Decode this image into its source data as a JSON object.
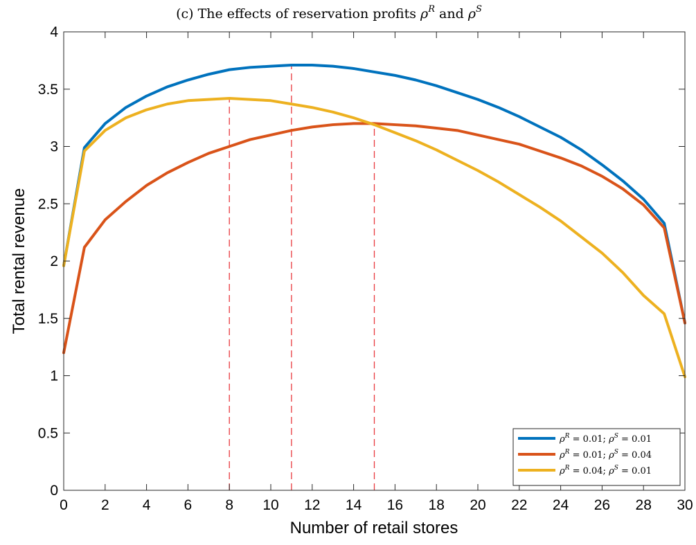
{
  "chart_data": {
    "type": "line",
    "title": "(c) The effects of reservation profits ρ^R and ρ^S",
    "title_parts": {
      "prefix": "(c) The effects of reservation profits ",
      "sym1": "ρ",
      "sup1": "R",
      "mid": " and ",
      "sym2": "ρ",
      "sup2": "S"
    },
    "xlabel": "Number of retail stores",
    "ylabel": "Total rental revenue",
    "xlim": [
      0,
      30
    ],
    "ylim": [
      0,
      4
    ],
    "xticks": [
      0,
      2,
      4,
      6,
      8,
      10,
      12,
      14,
      16,
      18,
      20,
      22,
      24,
      26,
      28,
      30
    ],
    "yticks": [
      0,
      0.5,
      1,
      1.5,
      2,
      2.5,
      3,
      3.5,
      4
    ],
    "ytick_labels": [
      "0",
      "0.5",
      "1",
      "1.5",
      "2",
      "2.5",
      "3",
      "3.5",
      "4"
    ],
    "grid": false,
    "legend_position": "bottom-right",
    "x": [
      0,
      1,
      2,
      3,
      4,
      5,
      6,
      7,
      8,
      9,
      10,
      11,
      12,
      13,
      14,
      15,
      16,
      17,
      18,
      19,
      20,
      21,
      22,
      23,
      24,
      25,
      26,
      27,
      28,
      29,
      30
    ],
    "series": [
      {
        "name": "ρ^R = 0.01; ρ^S = 0.01",
        "color": "#0072bd",
        "values": [
          1.96,
          2.99,
          3.2,
          3.34,
          3.44,
          3.52,
          3.58,
          3.63,
          3.67,
          3.69,
          3.7,
          3.71,
          3.71,
          3.7,
          3.68,
          3.65,
          3.62,
          3.58,
          3.53,
          3.47,
          3.41,
          3.34,
          3.26,
          3.17,
          3.08,
          2.97,
          2.84,
          2.7,
          2.54,
          2.33,
          1.46
        ]
      },
      {
        "name": "ρ^R = 0.01; ρ^S = 0.04",
        "color": "#d95319",
        "values": [
          1.2,
          2.12,
          2.36,
          2.52,
          2.66,
          2.77,
          2.86,
          2.94,
          3.0,
          3.06,
          3.1,
          3.14,
          3.17,
          3.19,
          3.2,
          3.2,
          3.19,
          3.18,
          3.16,
          3.14,
          3.1,
          3.06,
          3.02,
          2.96,
          2.9,
          2.83,
          2.74,
          2.63,
          2.49,
          2.29,
          1.46
        ]
      },
      {
        "name": "ρ^R = 0.04; ρ^S = 0.01",
        "color": "#edb120",
        "values": [
          1.96,
          2.96,
          3.14,
          3.25,
          3.32,
          3.37,
          3.4,
          3.41,
          3.42,
          3.41,
          3.4,
          3.37,
          3.34,
          3.3,
          3.25,
          3.19,
          3.12,
          3.05,
          2.97,
          2.88,
          2.79,
          2.69,
          2.58,
          2.47,
          2.35,
          2.21,
          2.07,
          1.9,
          1.7,
          1.54,
          0.99
        ]
      }
    ],
    "legend": [
      {
        "sym1": "ρ",
        "sup1": "R",
        "eq1": " = 0.01; ",
        "sym2": "ρ",
        "sup2": "S",
        "eq2": " = 0.01"
      },
      {
        "sym1": "ρ",
        "sup1": "R",
        "eq1": " = 0.01; ",
        "sym2": "ρ",
        "sup2": "S",
        "eq2": " = 0.04"
      },
      {
        "sym1": "ρ",
        "sup1": "R",
        "eq1": " = 0.04; ",
        "sym2": "ρ",
        "sup2": "S",
        "eq2": " = 0.01"
      }
    ],
    "reference_lines": [
      {
        "x": 8,
        "y": 3.42,
        "color": "#e8383d"
      },
      {
        "x": 11,
        "y": 3.71,
        "color": "#e8383d"
      },
      {
        "x": 15,
        "y": 3.2,
        "color": "#e8383d"
      }
    ]
  }
}
